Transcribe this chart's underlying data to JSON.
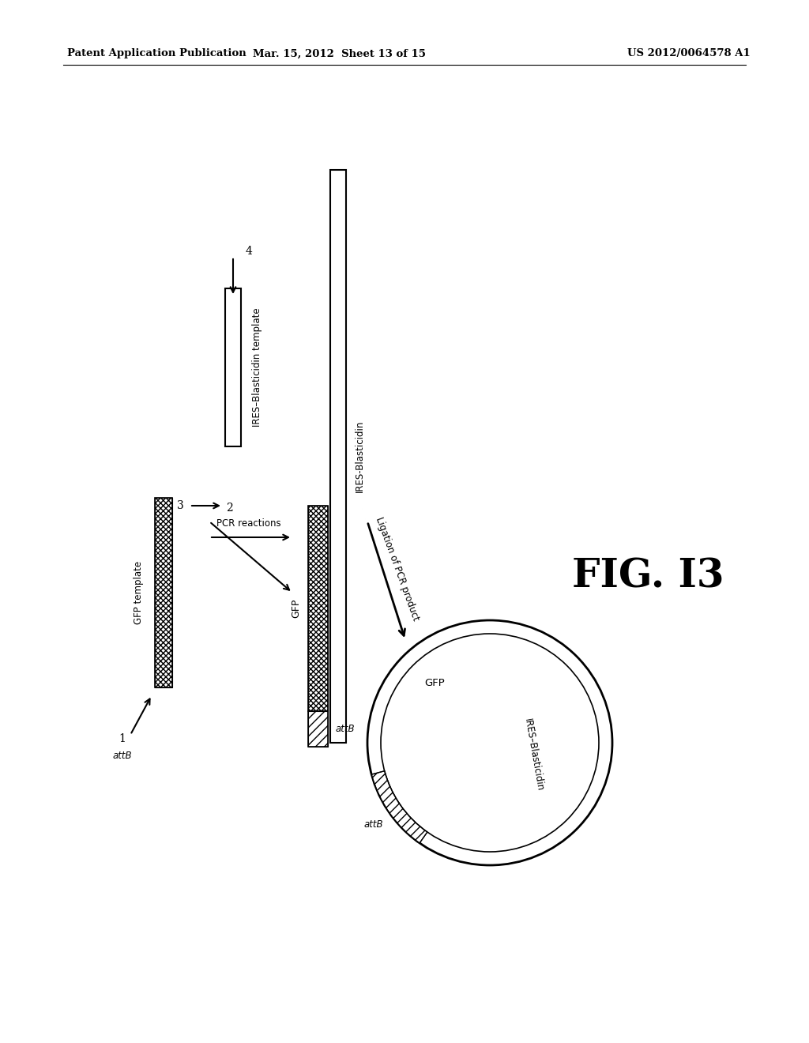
{
  "bg_color": "#ffffff",
  "header_left": "Patent Application Publication",
  "header_mid": "Mar. 15, 2012  Sheet 13 of 15",
  "header_right": "US 2012/0064578 A1",
  "fig_label": "FIG. I3",
  "attb_label_left": "attB",
  "arrow1_label": "1",
  "gfp_template_label": "GFP template",
  "arrow3_label": "3",
  "ires_template_label": "IRES–Blasticidin template",
  "arrow4_label": "4",
  "arrow2_label": "2",
  "pcr_label": "PCR reactions",
  "ires_blasticidin_pcr": "IRES-Blasticidin",
  "gfp_pcr": "GFP",
  "attb_pcr_label": "attB",
  "ligation_label": "Ligation of PCR product",
  "circle_gfp": "GFP",
  "circle_ires": "IRES–Blasticidin",
  "circle_attb": "attB"
}
